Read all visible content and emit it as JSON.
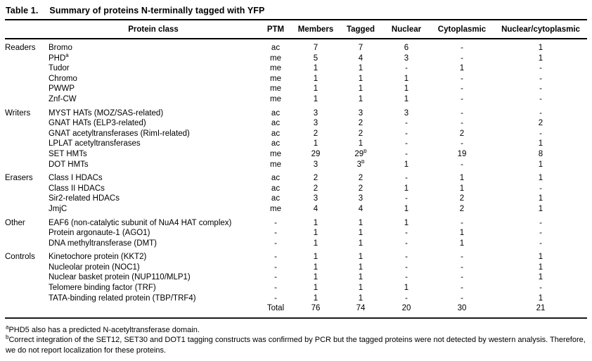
{
  "title": {
    "label": "Table 1.",
    "text": "Summary of proteins N-terminally tagged with YFP"
  },
  "columns": [
    "Protein class",
    "PTM",
    "Members",
    "Tagged",
    "Nuclear",
    "Cytoplasmic",
    "Nuclear/cytoplasmic"
  ],
  "groups": [
    {
      "name": "Readers",
      "rows": [
        {
          "protein": "Bromo",
          "ptm": "ac",
          "members": "7",
          "tagged": "7",
          "nuclear": "6",
          "cytoplasmic": "-",
          "nuclear_cytoplasmic": "1"
        },
        {
          "protein": "PHD",
          "protein_sup": "a",
          "ptm": "me",
          "members": "5",
          "tagged": "4",
          "nuclear": "3",
          "cytoplasmic": "-",
          "nuclear_cytoplasmic": "1"
        },
        {
          "protein": "Tudor",
          "ptm": "me",
          "members": "1",
          "tagged": "1",
          "nuclear": "-",
          "cytoplasmic": "1",
          "nuclear_cytoplasmic": "-"
        },
        {
          "protein": "Chromo",
          "ptm": "me",
          "members": "1",
          "tagged": "1",
          "nuclear": "1",
          "cytoplasmic": "-",
          "nuclear_cytoplasmic": "-"
        },
        {
          "protein": "PWWP",
          "ptm": "me",
          "members": "1",
          "tagged": "1",
          "nuclear": "1",
          "cytoplasmic": "-",
          "nuclear_cytoplasmic": "-"
        },
        {
          "protein": "Znf-CW",
          "ptm": "me",
          "members": "1",
          "tagged": "1",
          "nuclear": "1",
          "cytoplasmic": "-",
          "nuclear_cytoplasmic": "-"
        }
      ]
    },
    {
      "name": "Writers",
      "rows": [
        {
          "protein": "MYST HATs (MOZ/SAS-related)",
          "ptm": "ac",
          "members": "3",
          "tagged": "3",
          "nuclear": "3",
          "cytoplasmic": "-",
          "nuclear_cytoplasmic": "-"
        },
        {
          "protein": "GNAT HATs (ELP3-related)",
          "ptm": "ac",
          "members": "3",
          "tagged": "2",
          "nuclear": "-",
          "cytoplasmic": "-",
          "nuclear_cytoplasmic": "2"
        },
        {
          "protein": "GNAT acetyltransferases (RimI-related)",
          "ptm": "ac",
          "members": "2",
          "tagged": "2",
          "nuclear": "-",
          "cytoplasmic": "2",
          "nuclear_cytoplasmic": "-"
        },
        {
          "protein": "LPLAT acetyltransferases",
          "ptm": "ac",
          "members": "1",
          "tagged": "1",
          "nuclear": "-",
          "cytoplasmic": "-",
          "nuclear_cytoplasmic": "1"
        },
        {
          "protein": "SET HMTs",
          "ptm": "me",
          "members": "29",
          "tagged": "29",
          "tagged_sup": "b",
          "nuclear": "-",
          "cytoplasmic": "19",
          "nuclear_cytoplasmic": "8"
        },
        {
          "protein": "DOT HMTs",
          "ptm": "me",
          "members": "3",
          "tagged": "3",
          "tagged_sup": "b",
          "nuclear": "1",
          "cytoplasmic": "-",
          "nuclear_cytoplasmic": "1"
        }
      ]
    },
    {
      "name": "Erasers",
      "rows": [
        {
          "protein": "Class I HDACs",
          "ptm": "ac",
          "members": "2",
          "tagged": "2",
          "nuclear": "-",
          "cytoplasmic": "1",
          "nuclear_cytoplasmic": "1"
        },
        {
          "protein": "Class II HDACs",
          "ptm": "ac",
          "members": "2",
          "tagged": "2",
          "nuclear": "1",
          "cytoplasmic": "1",
          "nuclear_cytoplasmic": "-"
        },
        {
          "protein": "Sir2-related HDACs",
          "ptm": "ac",
          "members": "3",
          "tagged": "3",
          "nuclear": "-",
          "cytoplasmic": "2",
          "nuclear_cytoplasmic": "1"
        },
        {
          "protein": "JmjC",
          "ptm": "me",
          "members": "4",
          "tagged": "4",
          "nuclear": "1",
          "cytoplasmic": "2",
          "nuclear_cytoplasmic": "1"
        }
      ]
    },
    {
      "name": "Other",
      "rows": [
        {
          "protein": "EAF6 (non-catalytic subunit of NuA4 HAT complex)",
          "ptm": "-",
          "members": "1",
          "tagged": "1",
          "nuclear": "1",
          "cytoplasmic": "-",
          "nuclear_cytoplasmic": "-"
        },
        {
          "protein": "Protein argonaute-1 (AGO1)",
          "ptm": "-",
          "members": "1",
          "tagged": "1",
          "nuclear": "-",
          "cytoplasmic": "1",
          "nuclear_cytoplasmic": "-"
        },
        {
          "protein": "DNA methyltransferase (DMT)",
          "ptm": "-",
          "members": "1",
          "tagged": "1",
          "nuclear": "-",
          "cytoplasmic": "1",
          "nuclear_cytoplasmic": "-"
        }
      ]
    },
    {
      "name": "Controls",
      "rows": [
        {
          "protein": "Kinetochore protein (KKT2)",
          "ptm": "-",
          "members": "1",
          "tagged": "1",
          "nuclear": "-",
          "cytoplasmic": "-",
          "nuclear_cytoplasmic": "1"
        },
        {
          "protein": "Nucleolar protein (NOC1)",
          "ptm": "-",
          "members": "1",
          "tagged": "1",
          "nuclear": "-",
          "cytoplasmic": "-",
          "nuclear_cytoplasmic": "1"
        },
        {
          "protein": "Nuclear basket protein (NUP110/MLP1)",
          "ptm": "-",
          "members": "1",
          "tagged": "1",
          "nuclear": "-",
          "cytoplasmic": "-",
          "nuclear_cytoplasmic": "1"
        },
        {
          "protein": "Telomere binding factor (TRF)",
          "ptm": "-",
          "members": "1",
          "tagged": "1",
          "nuclear": "1",
          "cytoplasmic": "-",
          "nuclear_cytoplasmic": "-"
        },
        {
          "protein": "TATA-binding related protein (TBP/TRF4)",
          "ptm": "-",
          "members": "1",
          "tagged": "1",
          "nuclear": "-",
          "cytoplasmic": "-",
          "nuclear_cytoplasmic": "1"
        }
      ]
    }
  ],
  "total": {
    "label": "Total",
    "members": "76",
    "tagged": "74",
    "nuclear": "20",
    "cytoplasmic": "30",
    "nuclear_cytoplasmic": "21"
  },
  "footnotes": [
    {
      "sup": "a",
      "text": "PHD5 also has a predicted N-acetyltransferase domain."
    },
    {
      "sup": "b",
      "text": "Correct integration of the SET12, SET30 and DOT1 tagging constructs was confirmed by PCR but the tagged proteins were not detected by western analysis. Therefore, we do not report localization for these proteins."
    }
  ]
}
